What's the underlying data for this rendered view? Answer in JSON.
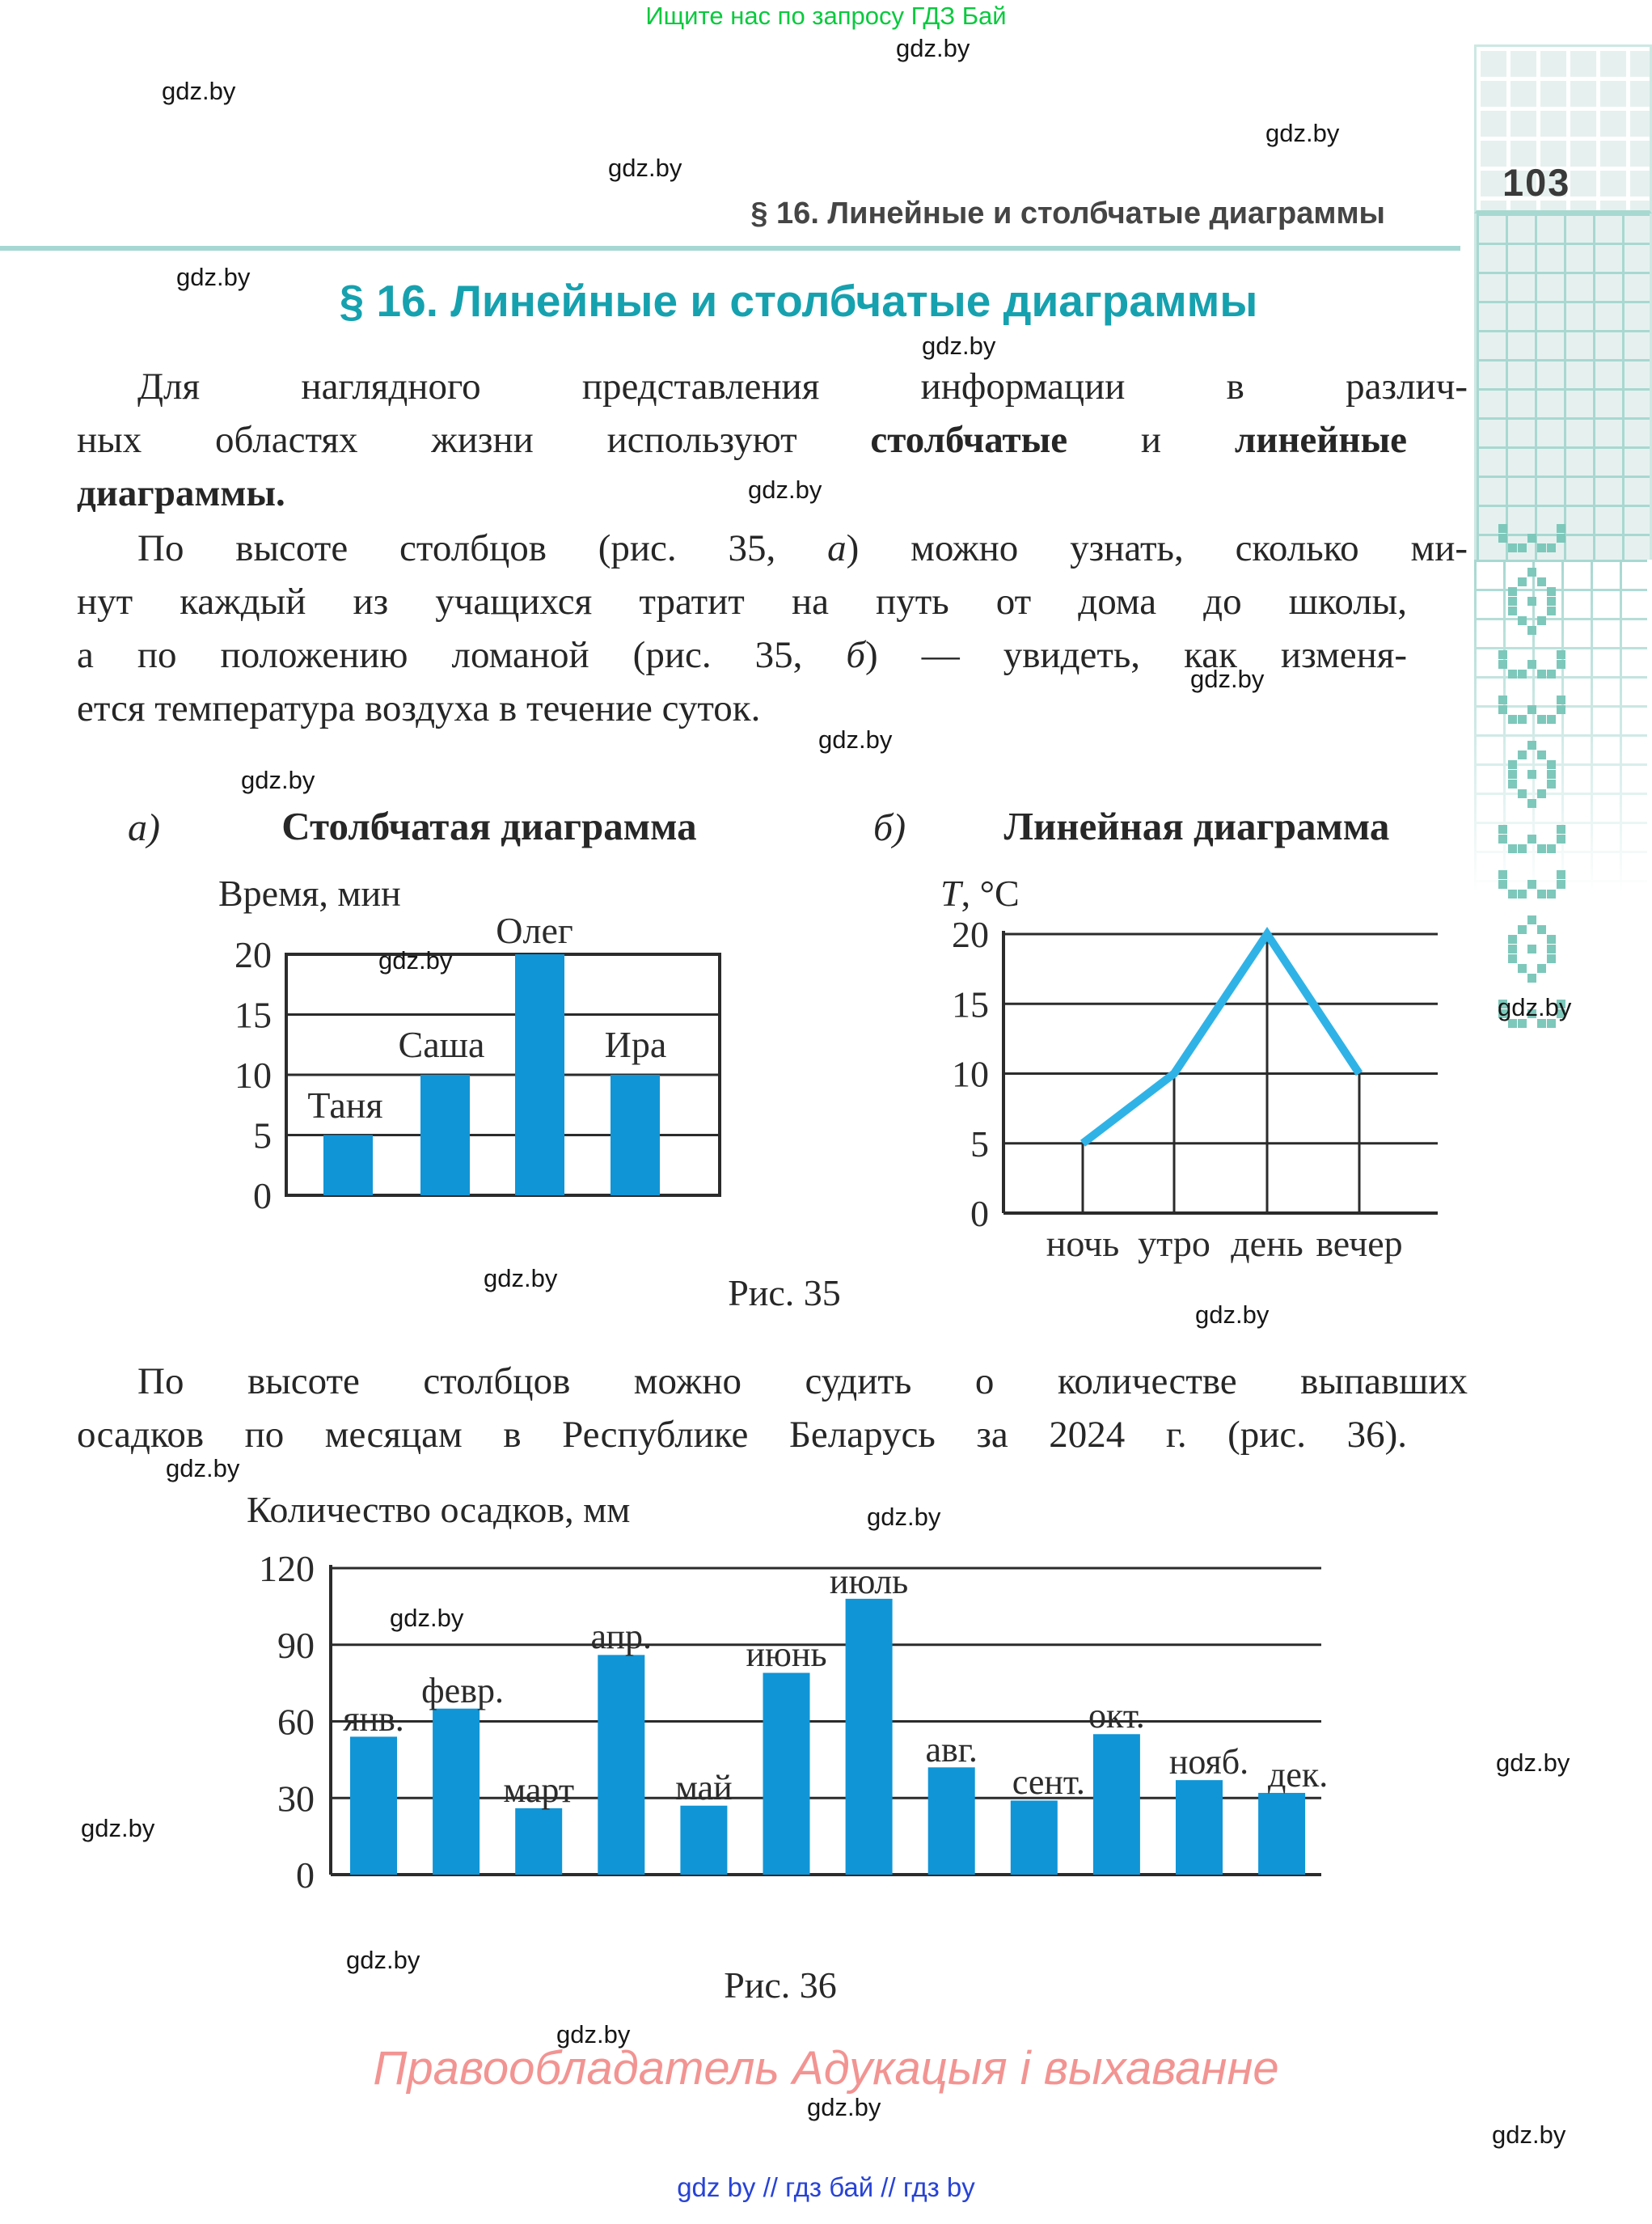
{
  "page": {
    "promo_top": "Ищите нас по запросу ГДЗ Бай",
    "watermark": "gdz.by",
    "header": {
      "title": "§ 16. Линейные и столбчатые диаграммы",
      "page_number": "103"
    },
    "section_title": "§ 16. Линейные и столбчатые диаграммы",
    "paragraphs": [
      {
        "lines": [
          {
            "indent": true,
            "justify": true,
            "runs": [
              {
                "t": "Для наглядного представления информации в различ-"
              }
            ]
          },
          {
            "justify": true,
            "runs": [
              {
                "t": "ных областях жизни используют "
              },
              {
                "t": "столбчатые",
                "b": true
              },
              {
                "t": " и "
              },
              {
                "t": "линейные",
                "b": true
              }
            ]
          },
          {
            "runs": [
              {
                "t": "диаграммы.",
                "b": true
              }
            ]
          }
        ]
      },
      {
        "lines": [
          {
            "indent": true,
            "justify": true,
            "runs": [
              {
                "t": "По высоте столбцов (рис. 35, "
              },
              {
                "t": "а",
                "i": true
              },
              {
                "t": ") можно узнать, сколько ми-"
              }
            ]
          },
          {
            "justify": true,
            "runs": [
              {
                "t": "нут каждый из учащихся тратит на путь от дома до школы,"
              }
            ]
          },
          {
            "justify": true,
            "runs": [
              {
                "t": "а по положению ломаной (рис. 35, "
              },
              {
                "t": "б",
                "i": true
              },
              {
                "t": ") — увидеть, как изменя-"
              }
            ]
          },
          {
            "runs": [
              {
                "t": "ется температура воздуха в течение суток."
              }
            ]
          }
        ]
      },
      {
        "lines": [
          {
            "indent": true,
            "justify": true,
            "runs": [
              {
                "t": "По высоте столбцов можно судить о количестве выпавших"
              }
            ]
          },
          {
            "justify": true,
            "runs": [
              {
                "t": "осадков по месяцам в Республике Беларусь за 2024 г. (рис. 36)."
              }
            ]
          }
        ]
      }
    ],
    "figure35_caption": "Рис. 35",
    "figure36_caption": "Рис. 36",
    "footer": {
      "copyright": "Правообладатель Адукацыя і выхаванне",
      "links": "gdz by  //  гдз бай  //  гдз by"
    }
  },
  "colors": {
    "accent_teal": "#16a1af",
    "rule_teal": "#a6d7d3",
    "bar_blue": "#1095d6",
    "line_blue": "#2fb3e7",
    "axis_dark": "#2b2b2b",
    "promo_green": "#09c93e",
    "footer_pink": "#f29492",
    "footer_link_blue": "#2743d6",
    "sidebar_grid": "#a8d8d1",
    "ornament": "#7dc8bb"
  },
  "chart_data": [
    {
      "id": "fig35a",
      "type": "bar",
      "panel_label": "а)",
      "title": "Столбчатая диаграмма",
      "ylabel": "Время, мин",
      "categories": [
        "Таня",
        "Саша",
        "Олег",
        "Ира"
      ],
      "values": [
        5,
        10,
        20,
        10
      ],
      "ylim": [
        0,
        20
      ],
      "yticks": [
        0,
        5,
        10,
        15,
        20
      ],
      "grid": "horizontal",
      "legend": "none"
    },
    {
      "id": "fig35b",
      "type": "line",
      "panel_label": "б)",
      "title": "Линейная диаграмма",
      "ylabel_runs": [
        {
          "t": "T",
          "i": true
        },
        {
          "t": ", °C"
        }
      ],
      "categories": [
        "ночь",
        "утро",
        "день",
        "вечер"
      ],
      "values": [
        5,
        10,
        20,
        10
      ],
      "ylim": [
        0,
        20
      ],
      "yticks": [
        0,
        5,
        10,
        15,
        20
      ],
      "grid": "horizontal+category-stems",
      "legend": "none"
    },
    {
      "id": "fig36",
      "type": "bar",
      "title": "Количество осадков, мм",
      "categories": [
        "янв.",
        "февр.",
        "март",
        "апр.",
        "май",
        "июнь",
        "июль",
        "авг.",
        "сент.",
        "окт.",
        "нояб.",
        "дек."
      ],
      "values": [
        54,
        65,
        26,
        86,
        27,
        79,
        108,
        42,
        29,
        55,
        37,
        32
      ],
      "ylim": [
        0,
        120
      ],
      "yticks": [
        0,
        30,
        60,
        90,
        120
      ],
      "grid": "horizontal",
      "legend": "none"
    }
  ]
}
